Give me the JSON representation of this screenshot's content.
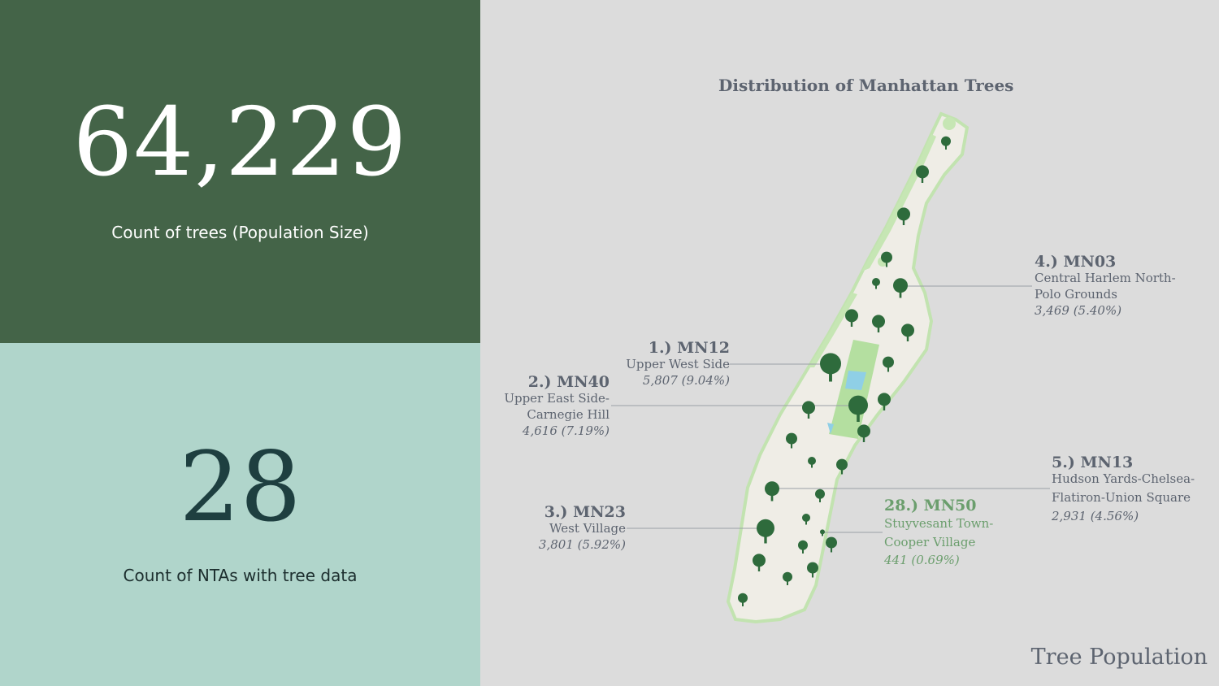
{
  "kpi_trees": {
    "value": "64,229",
    "label": "Count of trees (Population Size)"
  },
  "kpi_ntas": {
    "value": "28",
    "label": "Count of NTAs with tree data"
  },
  "map": {
    "title": "Distribution of Manhattan Trees",
    "callouts": [
      {
        "code": "1.) MN12",
        "name_lines": [
          "Upper West Side"
        ],
        "stat": "5,807 (9.04%)"
      },
      {
        "code": "2.) MN40",
        "name_lines": [
          "Upper East Side-",
          "Carnegie Hill"
        ],
        "stat": "4,616 (7.19%)"
      },
      {
        "code": "3.) MN23",
        "name_lines": [
          "West Village"
        ],
        "stat": "3,801 (5.92%)"
      },
      {
        "code": "4.) MN03",
        "name_lines": [
          "Central Harlem North-",
          "Polo Grounds"
        ],
        "stat": "3,469 (5.40%)"
      },
      {
        "code": "5.) MN13",
        "name_lines": [
          "Hudson Yards-Chelsea-",
          "Flatiron-Union Square"
        ],
        "stat": "2,931 (4.56%)"
      },
      {
        "code": "28.) MN50",
        "name_lines": [
          "Stuyvesant Town-",
          "Cooper Village"
        ],
        "stat": "441 (0.69%)"
      }
    ]
  },
  "colors": {
    "dark_green": "#446448",
    "mint": "#b0d5cb",
    "tree_icon": "#2e6b3c",
    "leader_line": "#9a9fa6"
  },
  "page_title": "Tree Population"
}
